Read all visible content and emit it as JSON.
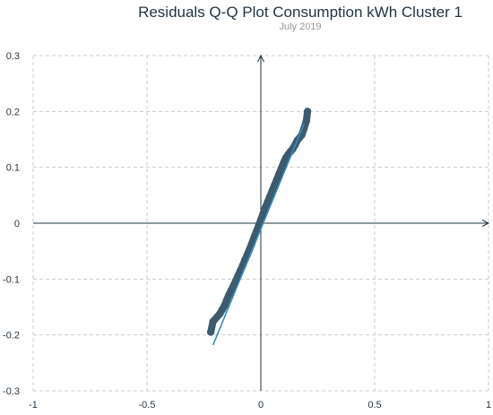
{
  "chart_data": {
    "type": "scatter",
    "title": "Residuals Q-Q Plot Consumption kWh Cluster 1",
    "subtitle": "July 2019",
    "xlabel": "",
    "ylabel": "",
    "xlim": [
      -1,
      1
    ],
    "ylim": [
      -0.3,
      0.3
    ],
    "x_ticks": [
      -1,
      -0.5,
      0,
      0.5,
      1
    ],
    "x_tick_labels": [
      "-1",
      "-0.5",
      "0",
      "0.5",
      "1"
    ],
    "y_ticks": [
      -0.3,
      -0.2,
      -0.1,
      0,
      0.1,
      0.2,
      0.3
    ],
    "y_tick_labels": [
      "-0.3",
      "-0.2",
      "-0.1",
      "0",
      "0.1",
      "0.2",
      "0.3"
    ],
    "grid": true,
    "colors": {
      "points": "#3e5a6e",
      "line": "#2e8fbf",
      "axes": "#1f3341",
      "grid": "#cccccc"
    },
    "series": [
      {
        "type": "scatter",
        "points": [
          [
            -0.22,
            -0.195
          ],
          [
            -0.21,
            -0.176
          ],
          [
            -0.18,
            -0.162
          ],
          [
            -0.17,
            -0.155
          ],
          [
            -0.16,
            -0.148
          ],
          [
            -0.15,
            -0.138
          ],
          [
            -0.14,
            -0.128
          ],
          [
            -0.13,
            -0.12
          ],
          [
            -0.12,
            -0.112
          ],
          [
            -0.11,
            -0.103
          ],
          [
            -0.1,
            -0.094
          ],
          [
            -0.09,
            -0.085
          ],
          [
            -0.08,
            -0.076
          ],
          [
            -0.07,
            -0.066
          ],
          [
            -0.06,
            -0.057
          ],
          [
            -0.05,
            -0.047
          ],
          [
            -0.04,
            -0.037
          ],
          [
            -0.03,
            -0.026
          ],
          [
            -0.02,
            -0.015
          ],
          [
            -0.01,
            -0.005
          ],
          [
            0.0,
            0.006
          ],
          [
            0.01,
            0.017
          ],
          [
            0.02,
            0.028
          ],
          [
            0.03,
            0.038
          ],
          [
            0.04,
            0.048
          ],
          [
            0.05,
            0.058
          ],
          [
            0.06,
            0.068
          ],
          [
            0.07,
            0.078
          ],
          [
            0.08,
            0.088
          ],
          [
            0.09,
            0.098
          ],
          [
            0.1,
            0.108
          ],
          [
            0.11,
            0.117
          ],
          [
            0.12,
            0.123
          ],
          [
            0.13,
            0.128
          ],
          [
            0.14,
            0.133
          ],
          [
            0.15,
            0.14
          ],
          [
            0.16,
            0.148
          ],
          [
            0.18,
            0.158
          ],
          [
            0.19,
            0.17
          ],
          [
            0.2,
            0.183
          ],
          [
            0.205,
            0.2
          ]
        ]
      },
      {
        "type": "line",
        "points": [
          [
            -0.21,
            -0.218
          ],
          [
            0.19,
            0.178
          ]
        ]
      }
    ]
  }
}
